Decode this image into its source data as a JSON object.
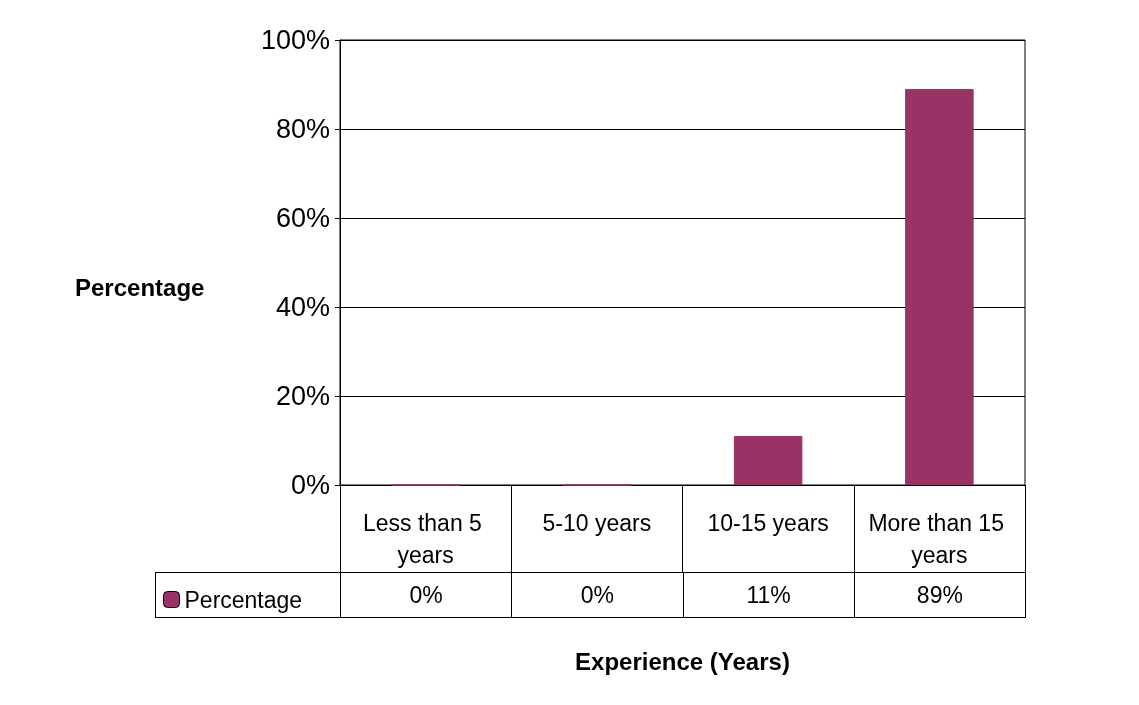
{
  "chart_data": {
    "type": "bar",
    "xlabel": "Experience (Years)",
    "ylabel": "Percentage",
    "categories": [
      "Less than 5 years",
      "5-10 years",
      "10-15 years",
      "More than 15 years"
    ],
    "series": [
      {
        "name": "Percentage",
        "color": "#993366",
        "values": [
          0,
          0,
          11,
          89
        ],
        "value_labels": [
          "0%",
          "0%",
          "11%",
          "89%"
        ]
      }
    ],
    "ylim": [
      0,
      100
    ],
    "yticks": [
      {
        "value": 0,
        "label": "0%"
      },
      {
        "value": 20,
        "label": "20%"
      },
      {
        "value": 40,
        "label": "40%"
      },
      {
        "value": 60,
        "label": "60%"
      },
      {
        "value": 80,
        "label": "80%"
      },
      {
        "value": 100,
        "label": "100%"
      }
    ],
    "grid": "y",
    "legend": "bottom left"
  }
}
